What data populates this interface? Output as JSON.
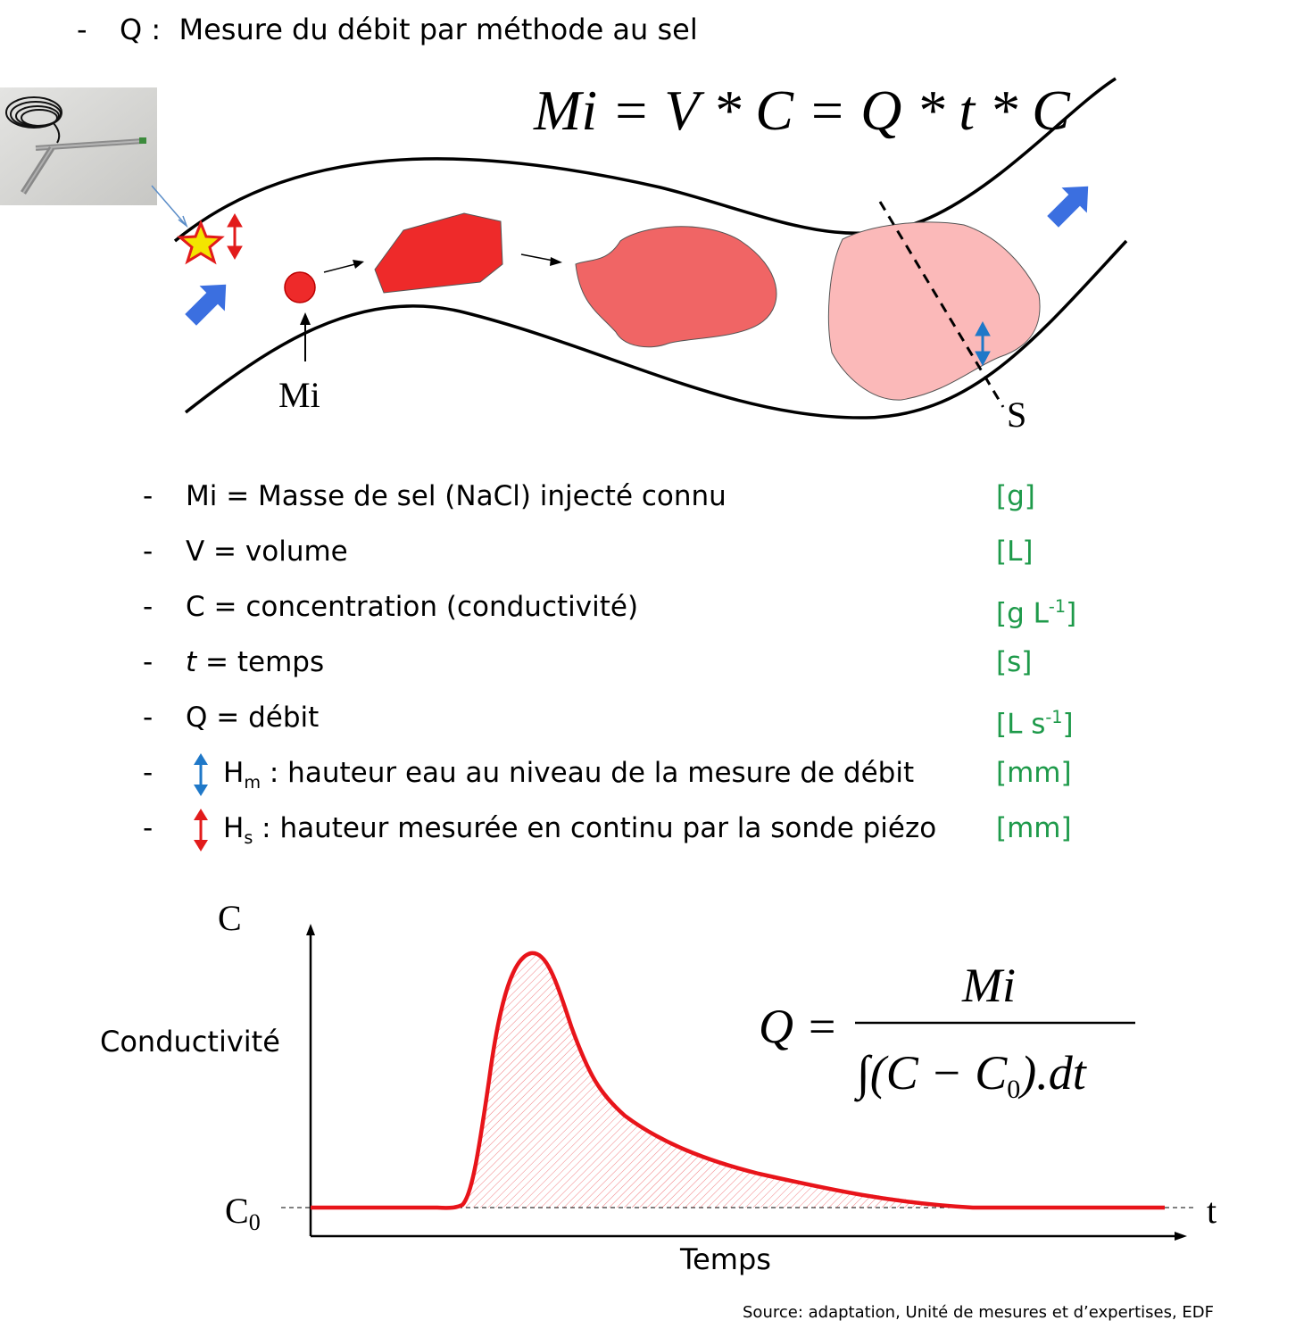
{
  "header": {
    "bullet": "-",
    "title": "Q :  Mesure du débit par méthode au sel"
  },
  "diagram": {
    "formula_top": "Mi = V * C = Q * t * C",
    "label_mi": "Mi",
    "label_s": "S",
    "colors": {
      "river_line": "#000000",
      "flow_arrow": "#3b6fe0",
      "salt_dark": "#ee2a2a",
      "salt_mid": "#f06565",
      "salt_light": "#fbb9b9",
      "probe_star": "#f3e500",
      "hs_arrow": "#e21b1b",
      "hm_arrow": "#1f78c8"
    },
    "icons": [
      "probe-photo",
      "star-icon",
      "flow-arrow-icon",
      "double-arrow-icon"
    ]
  },
  "definitions": [
    {
      "dash": "-",
      "text": "Mi = Masse de sel (NaCl) injecté connu",
      "unit": "[g]"
    },
    {
      "dash": "-",
      "text": "V = volume",
      "unit": "[L]"
    },
    {
      "dash": "-",
      "text": "C = concentration (conductivité)",
      "unit_main": "[g L",
      "unit_sup": "-1",
      "unit_end": "]"
    },
    {
      "dash": "-",
      "var": "t",
      "text": " = temps",
      "unit": "[s]"
    },
    {
      "dash": "-",
      "text": "Q = débit",
      "unit_main": "[L s",
      "unit_sup": "-1",
      "unit_end": "]"
    },
    {
      "dash": "-",
      "var": "H",
      "sub": "m",
      "text": " : hauteur eau au niveau de la mesure de débit",
      "unit": "[mm]"
    },
    {
      "dash": "-",
      "var": "H",
      "sub": "s",
      "text": " : hauteur mesurée en continu par la sonde piézo",
      "unit": "[mm]"
    }
  ],
  "graph": {
    "y_axis_letter": "C",
    "y_label": "Conductivité",
    "x_label": "Temps",
    "x_axis_letter": "t",
    "baseline_label": "C",
    "baseline_sub": "0",
    "formula": {
      "lhs": "Q =",
      "numerator": "Mi",
      "denominator": "∫(C − C",
      "denominator_sub": "0",
      "denominator_end": ").dt"
    },
    "curve_color": "#e8141a"
  },
  "source": "Source: adaptation, Unité de mesures et d’expertises,  EDF"
}
